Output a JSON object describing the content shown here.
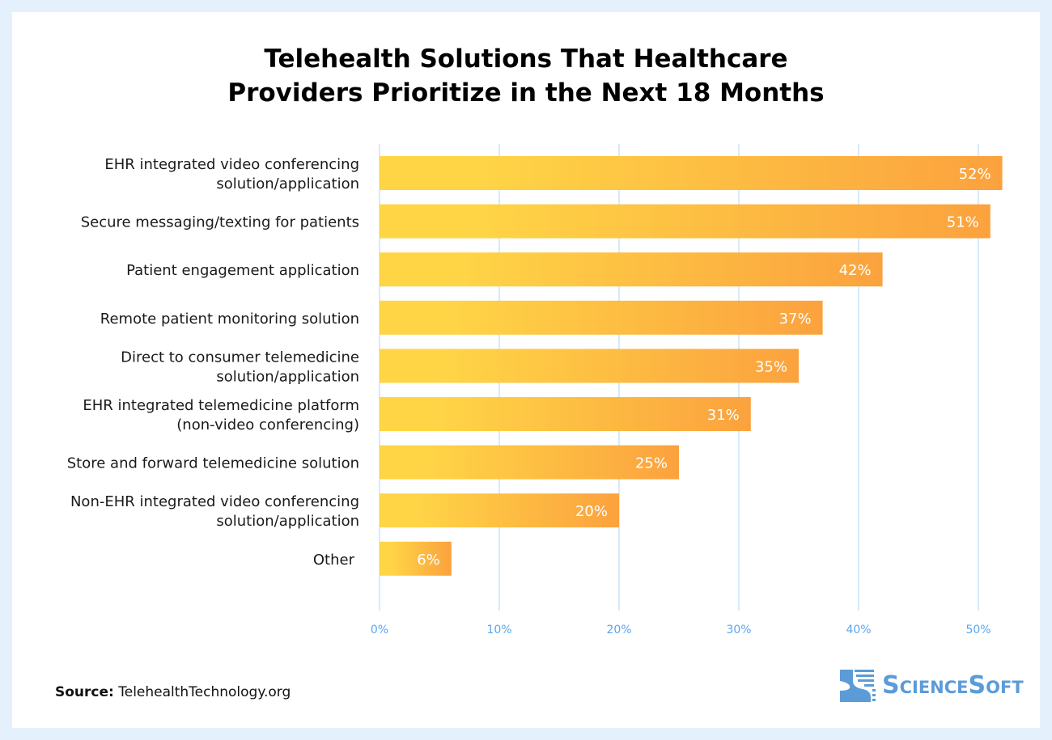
{
  "chart_data": {
    "type": "bar",
    "orientation": "horizontal",
    "title": "Telehealth Solutions That Healthcare Providers Prioritize in the Next 18 Months",
    "title_lines": [
      "Telehealth Solutions That Healthcare",
      "Providers Prioritize in the Next 18 Months"
    ],
    "categories": [
      [
        "EHR integrated video conferencing",
        "solution/application"
      ],
      [
        "Secure messaging/texting for patients"
      ],
      [
        "Patient engagement application"
      ],
      [
        "Remote patient monitoring solution"
      ],
      [
        "Direct to consumer telemedicine",
        "solution/application"
      ],
      [
        "EHR integrated telemedicine platform",
        "(non-video conferencing)"
      ],
      [
        "Store and forward telemedicine solution"
      ],
      [
        "Non-EHR integrated video conferencing",
        "solution/application"
      ],
      [
        "Other"
      ]
    ],
    "values": [
      52,
      51,
      42,
      37,
      35,
      31,
      25,
      20,
      6
    ],
    "data_labels": [
      "52%",
      "51%",
      "42%",
      "37%",
      "35%",
      "31%",
      "25%",
      "20%",
      "6%"
    ],
    "xlim": [
      0,
      50
    ],
    "x_ticks": [
      "0%",
      "10%",
      "20%",
      "30%",
      "40%",
      "50%"
    ],
    "x_tick_values": [
      0,
      10,
      20,
      30,
      40,
      50
    ],
    "grid": "vertical",
    "colors": {
      "bar_start": "#ffd546",
      "bar_end": "#fba23e",
      "grid": "#d6ebfb",
      "tick_text": "#5aa6ee"
    }
  },
  "footer": {
    "source_label": "Source:",
    "source_value": "TelehealthTechnology.org"
  },
  "logo": {
    "text": "ScienceSoft",
    "color": "#5b9bd8"
  }
}
